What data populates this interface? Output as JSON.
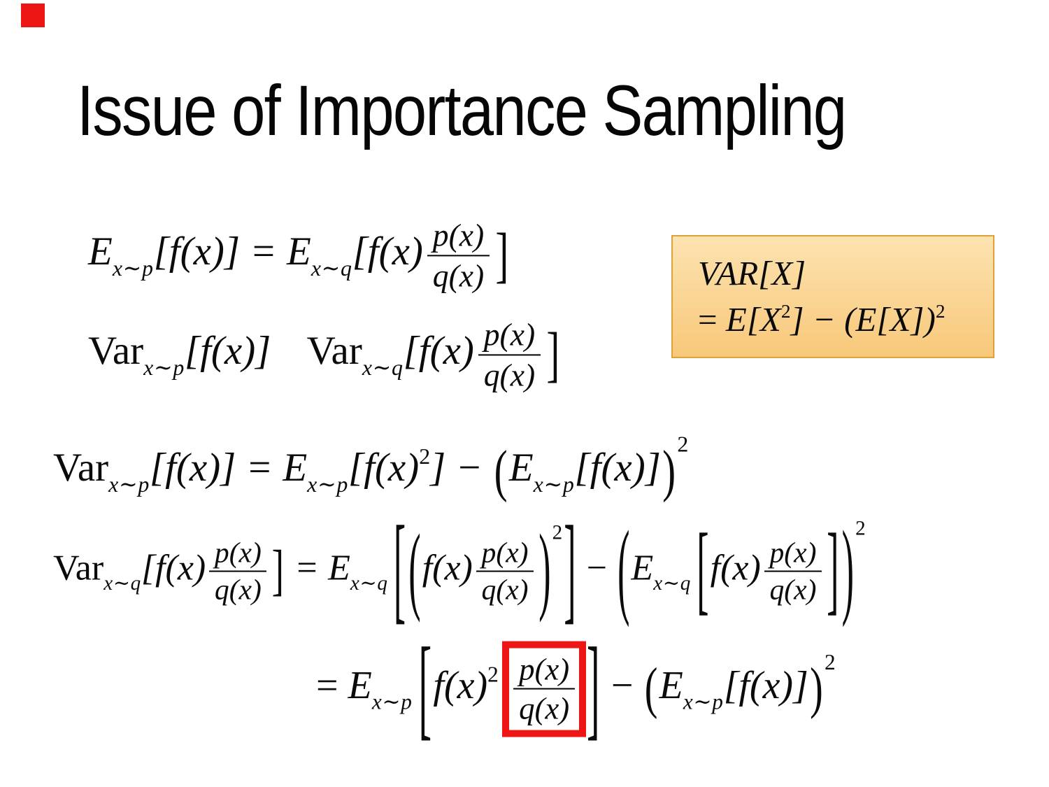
{
  "slide": {
    "title": "Issue of Importance Sampling"
  },
  "colors": {
    "red": "#ee1515",
    "box_border": "#dba339",
    "box_bg_top": "#fce3b0",
    "box_bg_bottom": "#f8c87a",
    "text": "#0b0b0b"
  },
  "highlight": {
    "text": "VAR[X] = E[X²] − (E[X])²",
    "line1": [
      {
        "t": "i",
        "v": "VAR[X]"
      }
    ],
    "line2": [
      {
        "t": "r",
        "v": "= "
      },
      {
        "t": "i",
        "v": "E[X"
      },
      {
        "t": "sup",
        "v": "2",
        "va": 0.7
      },
      {
        "t": "i",
        "v": "] − (E[X])"
      },
      {
        "t": "sup",
        "v": "2",
        "va": 0.7
      }
    ]
  },
  "formulas": {
    "line1": {
      "text": "E_{x∼p}[f(x)] = E_{x∼q}[f(x) p(x)/q(x)]",
      "tokens": [
        {
          "t": "i",
          "v": "E"
        },
        {
          "t": "sub",
          "v": "x∼p"
        },
        {
          "t": "i",
          "v": "[f(x)] = E"
        },
        {
          "t": "sub",
          "v": "x∼q"
        },
        {
          "t": "i",
          "v": "[f(x)"
        },
        {
          "t": "frac",
          "num": "p(x)",
          "den": "q(x)"
        },
        {
          "t": "big",
          "v": "]",
          "sy": 1.55
        }
      ]
    },
    "line2": {
      "text": "Var_{x∼p}[f(x)]    Var_{x∼q}[f(x) p(x)/q(x)]",
      "tokens": [
        {
          "t": "r",
          "v": "Var"
        },
        {
          "t": "sub",
          "v": "x∼p"
        },
        {
          "t": "i",
          "v": "[f(x)]"
        },
        {
          "t": "sp",
          "w": 0.9
        },
        {
          "t": "r",
          "v": "Var"
        },
        {
          "t": "sub",
          "v": "x∼q"
        },
        {
          "t": "i",
          "v": "[f(x)"
        },
        {
          "t": "frac",
          "num": "p(x)",
          "den": "q(x)"
        },
        {
          "t": "big",
          "v": "]",
          "sy": 1.55
        }
      ]
    },
    "line3": {
      "text": "Var_{x∼p}[f(x)] = E_{x∼p}[f(x)²] − (E_{x∼p}[f(x)])²",
      "tokens": [
        {
          "t": "r",
          "v": "Var"
        },
        {
          "t": "sub",
          "v": "x∼p"
        },
        {
          "t": "i",
          "v": "[f(x)] = E"
        },
        {
          "t": "sub",
          "v": "x∼p"
        },
        {
          "t": "i",
          "v": "[f(x)"
        },
        {
          "t": "sup",
          "v": "2",
          "va": 0.75
        },
        {
          "t": "i",
          "v": "] − "
        },
        {
          "t": "big",
          "v": "(",
          "sy": 1.45
        },
        {
          "t": "i",
          "v": "E"
        },
        {
          "t": "sub",
          "v": "x∼p"
        },
        {
          "t": "i",
          "v": "[f(x)]"
        },
        {
          "t": "big",
          "v": ")",
          "sy": 1.45
        },
        {
          "t": "sup",
          "v": "2",
          "va": 1.3
        }
      ]
    },
    "line4": {
      "text": "Var_{x∼q}[f(x) p(x)/q(x)] = E_{x∼q}[(f(x) p(x)/q(x))²] − (E_{x∼q}[f(x) p(x)/q(x)])²",
      "tokens": [
        {
          "t": "r",
          "v": "Var"
        },
        {
          "t": "sub",
          "v": "x∼q"
        },
        {
          "t": "i",
          "v": "[f(x)"
        },
        {
          "t": "frac",
          "num": "p(x)",
          "den": "q(x)"
        },
        {
          "t": "big",
          "v": "]",
          "sy": 1.55
        },
        {
          "t": "i",
          "v": " = E"
        },
        {
          "t": "sub",
          "v": "x∼q"
        },
        {
          "t": "sp",
          "w": 0.12
        },
        {
          "t": "big",
          "v": "[",
          "sy": 3.3
        },
        {
          "t": "big",
          "v": "(",
          "sy": 2.7
        },
        {
          "t": "i",
          "v": "f(x)"
        },
        {
          "t": "frac",
          "num": "p(x)",
          "den": "q(x)"
        },
        {
          "t": "big",
          "v": ")",
          "sy": 2.7
        },
        {
          "t": "sup",
          "v": "2",
          "va": 2.0
        },
        {
          "t": "big",
          "v": "]",
          "sy": 3.3
        },
        {
          "t": "r",
          "v": " − "
        },
        {
          "t": "big",
          "v": "(",
          "sy": 2.95
        },
        {
          "t": "i",
          "v": "E"
        },
        {
          "t": "sub",
          "v": "x∼q"
        },
        {
          "t": "sp",
          "w": 0.12
        },
        {
          "t": "big",
          "v": "[",
          "sy": 2.75
        },
        {
          "t": "i",
          "v": "f(x)"
        },
        {
          "t": "frac",
          "num": "p(x)",
          "den": "q(x)"
        },
        {
          "t": "big",
          "v": "]",
          "sy": 2.75
        },
        {
          "t": "big",
          "v": ")",
          "sy": 2.95
        },
        {
          "t": "sup",
          "v": "2",
          "va": 2.2
        }
      ]
    },
    "line5": {
      "text": "= E_{x∼p}[f(x)² p(x)/q(x)] − (E_{x∼p}[f(x)])²",
      "tokens": [
        {
          "t": "r",
          "v": "= "
        },
        {
          "t": "i",
          "v": "E"
        },
        {
          "t": "sub",
          "v": "x∼p"
        },
        {
          "t": "sp",
          "w": 0.12
        },
        {
          "t": "big",
          "v": "[",
          "sy": 2.9
        },
        {
          "t": "i",
          "v": "f(x)"
        },
        {
          "t": "sup",
          "v": "2",
          "va": 0.75
        },
        {
          "t": "frac",
          "num": "p(x)",
          "den": "q(x)",
          "boxed": true
        },
        {
          "t": "big",
          "v": "]",
          "sy": 2.9,
          "tuck": true
        },
        {
          "t": "r",
          "v": " − "
        },
        {
          "t": "big",
          "v": "(",
          "sy": 1.45
        },
        {
          "t": "i",
          "v": "E"
        },
        {
          "t": "sub",
          "v": "x∼p"
        },
        {
          "t": "i",
          "v": "[f(x)]"
        },
        {
          "t": "big",
          "v": ")",
          "sy": 1.45
        },
        {
          "t": "sup",
          "v": "2",
          "va": 1.3
        }
      ]
    }
  }
}
